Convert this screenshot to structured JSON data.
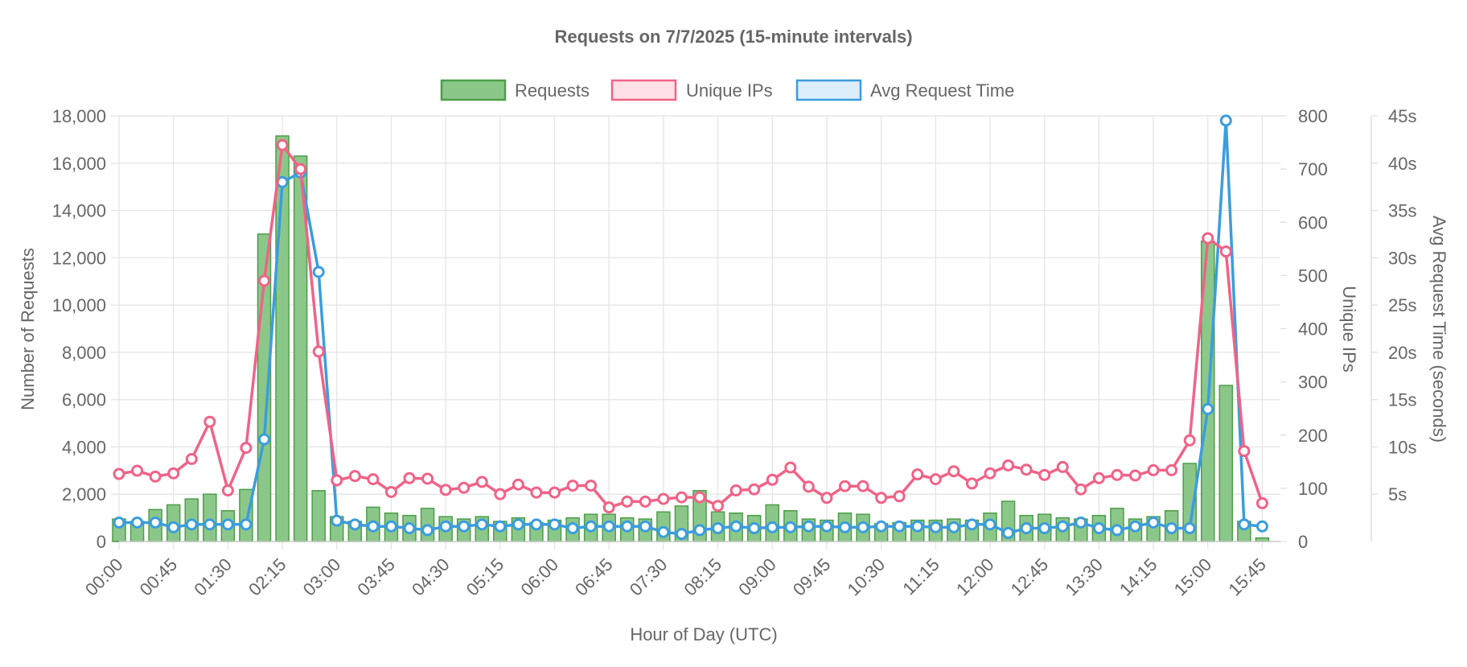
{
  "chart_data": {
    "type": "bar",
    "title": "Requests on 7/7/2025 (15-minute intervals)",
    "xlabel": "Hour of Day (UTC)",
    "ylabel_left": "Number of Requests",
    "ylabel_right1": "Unique IPs",
    "ylabel_right2": "Avg Request Time (seconds)",
    "legend_position": "top-center",
    "grid": true,
    "ylim_left": [
      0,
      18000
    ],
    "ylim_right1": [
      0,
      800
    ],
    "ylim_right2": [
      0,
      45
    ],
    "x": [
      "00:00",
      "00:15",
      "00:30",
      "00:45",
      "01:00",
      "01:15",
      "01:30",
      "01:45",
      "02:00",
      "02:15",
      "02:30",
      "02:45",
      "03:00",
      "03:15",
      "03:30",
      "03:45",
      "04:00",
      "04:15",
      "04:30",
      "04:45",
      "05:00",
      "05:15",
      "05:30",
      "05:45",
      "06:00",
      "06:15",
      "06:30",
      "06:45",
      "07:00",
      "07:15",
      "07:30",
      "07:45",
      "08:00",
      "08:15",
      "08:30",
      "08:45",
      "09:00",
      "09:15",
      "09:30",
      "09:45",
      "10:00",
      "10:15",
      "10:30",
      "10:45",
      "11:00",
      "11:15",
      "11:30",
      "11:45",
      "12:00",
      "12:15",
      "12:30",
      "12:45",
      "13:00",
      "13:15",
      "13:30",
      "13:45",
      "14:00",
      "14:15",
      "14:30",
      "14:45",
      "15:00",
      "15:15",
      "15:30",
      "15:45",
      "16:00"
    ],
    "x_tick_labels": [
      "00:00",
      "00:45",
      "01:30",
      "02:15",
      "03:00",
      "03:45",
      "04:30",
      "05:15",
      "06:00",
      "06:45",
      "07:30",
      "08:15",
      "09:00",
      "09:45",
      "10:30",
      "11:15",
      "12:00",
      "12:45",
      "13:30",
      "14:15",
      "15:00",
      "15:45"
    ],
    "y_ticks_left": [
      "0",
      "2,000",
      "4,000",
      "6,000",
      "8,000",
      "10,000",
      "12,000",
      "14,000",
      "16,000",
      "18,000"
    ],
    "y_ticks_right1": [
      "0",
      "100",
      "200",
      "300",
      "400",
      "500",
      "600",
      "700",
      "800"
    ],
    "y_ticks_right2": [
      "5s",
      "10s",
      "15s",
      "20s",
      "25s",
      "30s",
      "35s",
      "40s",
      "45s"
    ],
    "series": [
      {
        "name": "Requests",
        "type": "bar",
        "axis": "left",
        "color": "#8cc78a",
        "border": "#4c9e49",
        "values": [
          950,
          850,
          1350,
          1550,
          1800,
          2000,
          1300,
          2200,
          13000,
          17150,
          16300,
          2150,
          1050,
          850,
          1450,
          1200,
          1100,
          1400,
          1050,
          950,
          1050,
          850,
          1000,
          800,
          900,
          1000,
          1150,
          1150,
          1000,
          950,
          1250,
          1500,
          2150,
          1250,
          1200,
          1100,
          1550,
          1300,
          950,
          900,
          1200,
          1150,
          750,
          800,
          900,
          900,
          950,
          900,
          1200,
          1700,
          1100,
          1150,
          1000,
          950,
          1100,
          1400,
          950,
          1050,
          1300,
          3300,
          12700,
          6600,
          850,
          150,
          0
        ]
      },
      {
        "name": "Unique IPs",
        "type": "line",
        "axis": "right1",
        "color": "#f06387",
        "values": [
          127,
          133,
          122,
          128,
          155,
          225,
          96,
          176,
          490,
          745,
          700,
          357,
          115,
          123,
          117,
          93,
          119,
          118,
          97,
          101,
          112,
          89,
          107,
          92,
          92,
          105,
          105,
          64,
          75,
          75,
          80,
          83,
          83,
          67,
          96,
          98,
          116,
          139,
          103,
          82,
          104,
          104,
          82,
          85,
          126,
          117,
          132,
          109,
          128,
          143,
          135,
          125,
          140,
          98,
          119,
          125,
          124,
          134,
          134,
          190,
          570,
          545,
          170,
          72,
          null
        ]
      },
      {
        "name": "Avg Request Time",
        "type": "line",
        "axis": "right2",
        "color": "#3b9ddd",
        "values": [
          2.0,
          2.0,
          2.0,
          1.5,
          1.8,
          1.8,
          1.8,
          1.8,
          10.8,
          38.0,
          39.0,
          28.5,
          2.2,
          1.8,
          1.6,
          1.6,
          1.4,
          1.2,
          1.6,
          1.6,
          1.8,
          1.6,
          1.8,
          1.8,
          1.8,
          1.4,
          1.6,
          1.6,
          1.6,
          1.6,
          1.0,
          0.8,
          1.2,
          1.4,
          1.6,
          1.4,
          1.5,
          1.5,
          1.6,
          1.6,
          1.5,
          1.5,
          1.6,
          1.6,
          1.6,
          1.5,
          1.5,
          1.8,
          1.8,
          0.9,
          1.4,
          1.4,
          1.6,
          2.0,
          1.4,
          1.2,
          1.6,
          2.0,
          1.4,
          1.4,
          14.0,
          44.5,
          1.8,
          1.6,
          null
        ]
      }
    ]
  }
}
